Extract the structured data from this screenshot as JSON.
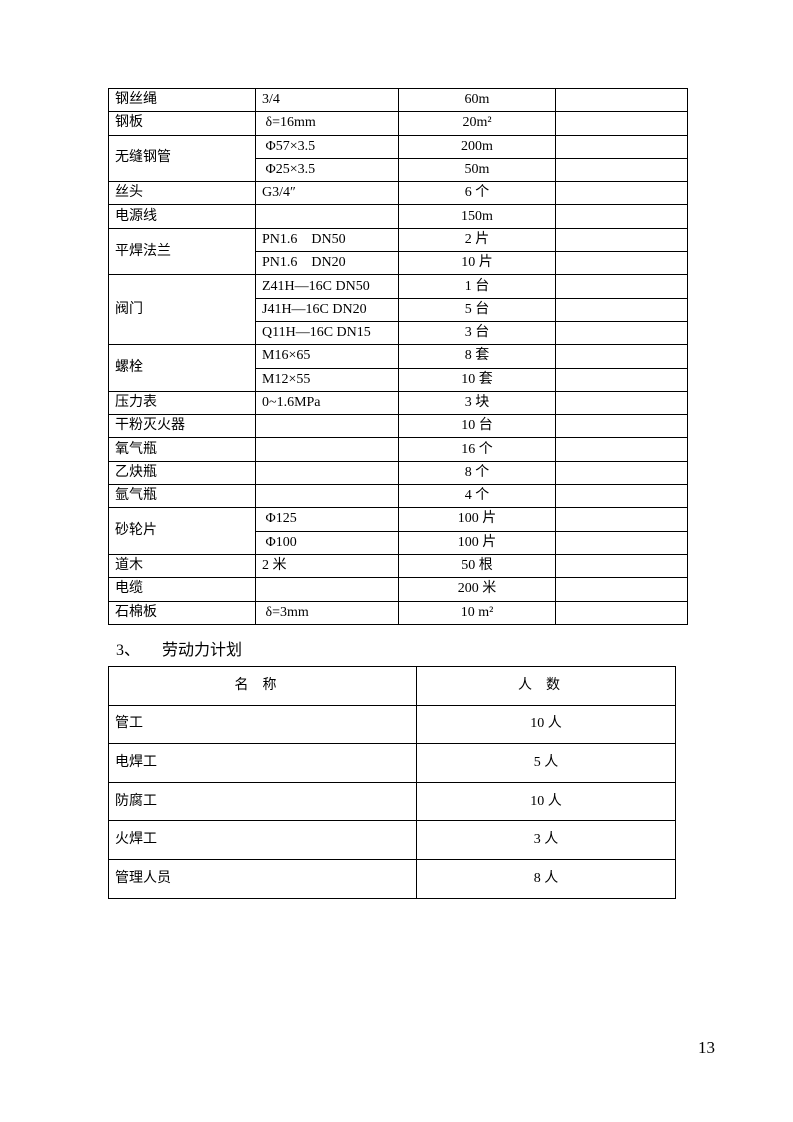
{
  "materials": [
    {
      "name": "钢丝绳",
      "items": [
        {
          "spec": "3/4",
          "qty": "60m"
        }
      ]
    },
    {
      "name": "钢板",
      "items": [
        {
          "spec": " δ=16mm",
          "qty": "20m²"
        }
      ]
    },
    {
      "name": "无缝钢管",
      "items": [
        {
          "spec": " Φ57×3.5",
          "qty": "200m"
        },
        {
          "spec": " Φ25×3.5",
          "qty": "50m"
        }
      ]
    },
    {
      "name": "丝头",
      "items": [
        {
          "spec": "G3/4″",
          "qty": "6 个"
        }
      ]
    },
    {
      "name": "电源线",
      "items": [
        {
          "spec": "",
          "qty": "150m"
        }
      ]
    },
    {
      "name": "平焊法兰",
      "items": [
        {
          "spec": "PN1.6    DN50",
          "qty": "2 片"
        },
        {
          "spec": "PN1.6    DN20",
          "qty": "10 片"
        }
      ]
    },
    {
      "name": "阀门",
      "items": [
        {
          "spec": "Z41H—16C DN50",
          "qty": "1 台"
        },
        {
          "spec": "J41H—16C DN20",
          "qty": "5 台"
        },
        {
          "spec": "Q11H—16C DN15",
          "qty": "3 台"
        }
      ]
    },
    {
      "name": "螺栓",
      "items": [
        {
          "spec": "M16×65",
          "qty": "8 套"
        },
        {
          "spec": "M12×55",
          "qty": "10 套"
        }
      ]
    },
    {
      "name": "压力表",
      "items": [
        {
          "spec": "0~1.6MPa",
          "qty": "3 块"
        }
      ]
    },
    {
      "name": "干粉灭火器",
      "items": [
        {
          "spec": "",
          "qty": "10 台"
        }
      ]
    },
    {
      "name": "氧气瓶",
      "items": [
        {
          "spec": "",
          "qty": "16 个"
        }
      ]
    },
    {
      "name": "乙炔瓶",
      "items": [
        {
          "spec": "",
          "qty": "8 个"
        }
      ]
    },
    {
      "name": "氩气瓶",
      "items": [
        {
          "spec": "",
          "qty": "4 个"
        }
      ]
    },
    {
      "name": "砂轮片",
      "items": [
        {
          "spec": " Φ125",
          "qty": "100 片"
        },
        {
          "spec": " Φ100",
          "qty": "100 片"
        }
      ]
    },
    {
      "name": "道木",
      "items": [
        {
          "spec": "2 米",
          "qty": "50 根"
        }
      ]
    },
    {
      "name": "电缆",
      "items": [
        {
          "spec": "",
          "qty": "200 米"
        }
      ]
    },
    {
      "name": "石棉板",
      "items": [
        {
          "spec": " δ=3mm",
          "qty": "10 m²"
        }
      ]
    }
  ],
  "section": {
    "number": "3、",
    "title": "劳动力计划"
  },
  "labor": {
    "headers": [
      "名称",
      "人数"
    ],
    "rows": [
      {
        "name": "管工",
        "count": "10 人"
      },
      {
        "name": "电焊工",
        "count": "5 人"
      },
      {
        "name": "防腐工",
        "count": "10 人"
      },
      {
        "name": "火焊工",
        "count": "3 人"
      },
      {
        "name": "管理人员",
        "count": "8 人"
      }
    ]
  },
  "page_number": "13"
}
